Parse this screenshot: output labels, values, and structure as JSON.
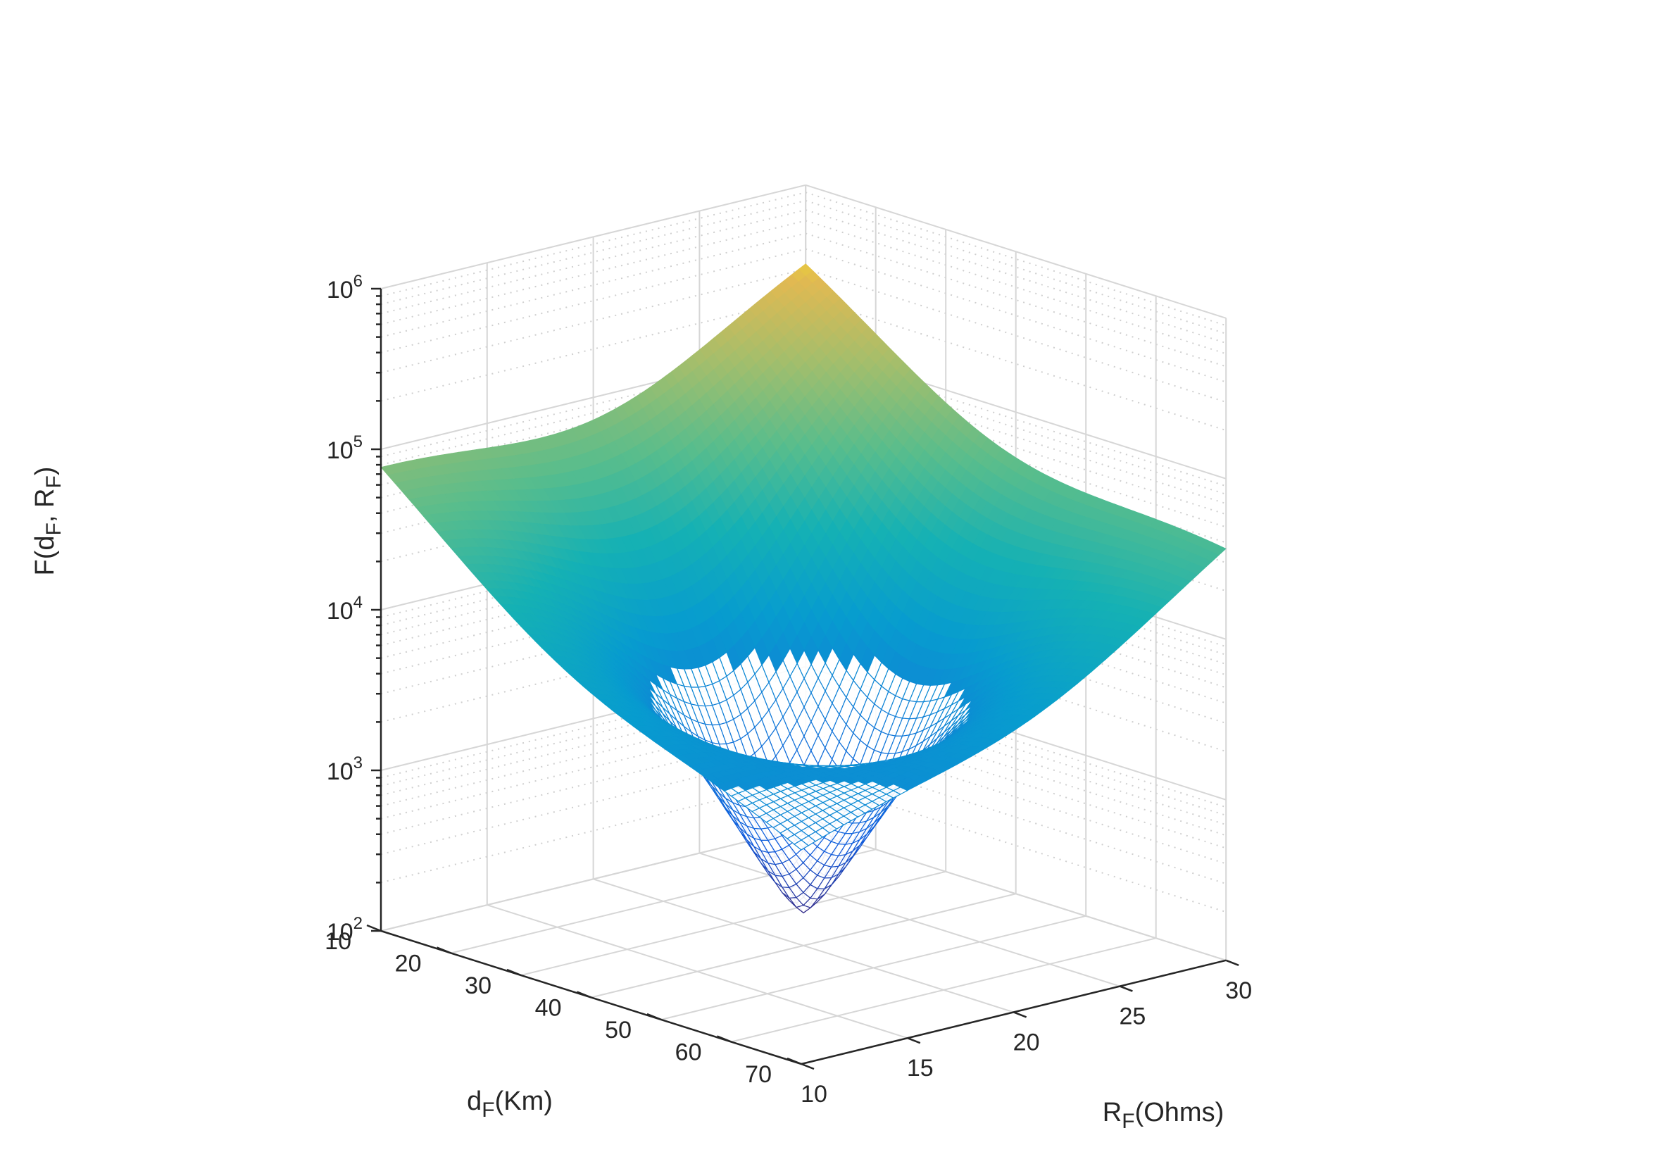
{
  "chart_data": {
    "type": "surface",
    "title": "",
    "xlabel": {
      "base": "d",
      "sub": "F",
      "rest": "(Km)"
    },
    "ylabel": {
      "base": "R",
      "sub": "F",
      "rest": "(Ohms)"
    },
    "zlabel": {
      "pre": "F(d",
      "sub1": "F",
      "mid": ", R",
      "sub2": "F",
      "post": ")"
    },
    "xlim": [
      10,
      70
    ],
    "ylim": [
      10,
      30
    ],
    "zlim": [
      100,
      1000000
    ],
    "zscale": "log",
    "grid": true,
    "colormap": "parula",
    "x_ticks": [
      {
        "value": 10,
        "label": "10"
      },
      {
        "value": 20,
        "label": "20"
      },
      {
        "value": 30,
        "label": "30"
      },
      {
        "value": 40,
        "label": "40"
      },
      {
        "value": 50,
        "label": "50"
      },
      {
        "value": 60,
        "label": "60"
      },
      {
        "value": 70,
        "label": "70"
      }
    ],
    "y_ticks": [
      {
        "value": 10,
        "label": "10"
      },
      {
        "value": 15,
        "label": "15"
      },
      {
        "value": 20,
        "label": "20"
      },
      {
        "value": 25,
        "label": "25"
      },
      {
        "value": 30,
        "label": "30"
      }
    ],
    "z_ticks": [
      {
        "value": 100,
        "base": "10",
        "exp": "2"
      },
      {
        "value": 1000,
        "base": "10",
        "exp": "3"
      },
      {
        "value": 10000,
        "base": "10",
        "exp": "4"
      },
      {
        "value": 100000,
        "base": "10",
        "exp": "5"
      },
      {
        "value": 1000000,
        "base": "10",
        "exp": "6"
      }
    ],
    "surface": {
      "minimum": {
        "dF": 40,
        "RF": 20,
        "F": 160
      },
      "corner_values": [
        {
          "dF": 10,
          "RF": 10,
          "F": 110000
        },
        {
          "dF": 10,
          "RF": 30,
          "F": 500000
        },
        {
          "dF": 70,
          "RF": 30,
          "F": 50000
        },
        {
          "dF": 70,
          "RF": 10,
          "F": 2500
        }
      ]
    },
    "colors": {
      "low": "#352a87",
      "mid": "#0f89d9",
      "teal": "#1ab0bc",
      "green": "#4bc26c",
      "orange": "#fbb33b",
      "high": "#f9fb0e"
    }
  }
}
